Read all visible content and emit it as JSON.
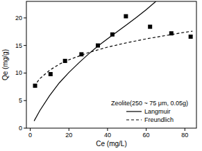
{
  "chart_data": {
    "type": "scatter",
    "x_label": "Ce (mg/L)",
    "y_label": "Qe (mg/g)",
    "legend_title": "Zeolite(250 ~ 75 μm, 0.05g)",
    "legend": "bottom-right",
    "xlim": [
      -2,
      86
    ],
    "xticks": [
      0,
      20,
      40,
      60,
      80
    ],
    "ylim": [
      0,
      23
    ],
    "yticks": [
      0,
      5,
      10,
      15,
      20
    ],
    "series": [
      {
        "type": "scatter",
        "marker": "square",
        "color": "#000000",
        "x": [
          2.5,
          10.5,
          18,
          26.5,
          35,
          42.5,
          49.5,
          62,
          73,
          83
        ],
        "values": [
          7.7,
          9.8,
          12.2,
          13.4,
          15.0,
          17.0,
          20.3,
          18.4,
          17.2,
          16.6
        ]
      },
      {
        "name": "Langmuir",
        "type": "line",
        "line_style": "solid",
        "color": "#000000",
        "x": [
          2,
          5,
          10,
          15,
          20,
          25,
          30,
          35,
          40,
          45,
          50,
          55,
          60,
          65
        ],
        "values": [
          1.3,
          3.2,
          5.9,
          8.2,
          10.1,
          11.8,
          13.4,
          14.9,
          16.2,
          17.5,
          18.8,
          20.1,
          21.5,
          23.0
        ]
      },
      {
        "name": "Freundlich",
        "type": "line",
        "line_style": "dashed",
        "color": "#000000",
        "x": [
          2,
          5,
          10,
          15,
          20,
          30,
          40,
          50,
          60,
          70,
          80,
          84
        ],
        "values": [
          7.6,
          9.0,
          10.5,
          11.6,
          12.4,
          13.7,
          14.7,
          15.5,
          16.2,
          16.8,
          17.4,
          17.6
        ]
      }
    ]
  }
}
